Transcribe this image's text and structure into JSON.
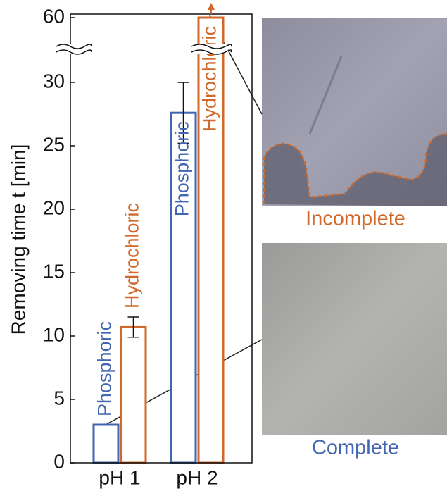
{
  "chart_data": {
    "type": "bar",
    "y_label": "Removing time t [min]",
    "categories": [
      "pH 1",
      "pH 2"
    ],
    "series": [
      {
        "name": "Phosphoric",
        "color": "#4266b0",
        "values": [
          3,
          27.6
        ],
        "errors": [
          null,
          2.4
        ]
      },
      {
        "name": "Hydrochloric",
        "color": "#d2692a",
        "values": [
          10.7,
          60
        ],
        "errors": [
          0.8,
          null
        ]
      }
    ],
    "ylim": [
      0,
      60
    ],
    "y_break": [
      30,
      60
    ],
    "yticks": [
      0,
      5,
      10,
      15,
      20,
      25,
      30,
      60
    ]
  },
  "photos": [
    {
      "label": "Incomplete"
    },
    {
      "label": "Complete"
    }
  ]
}
